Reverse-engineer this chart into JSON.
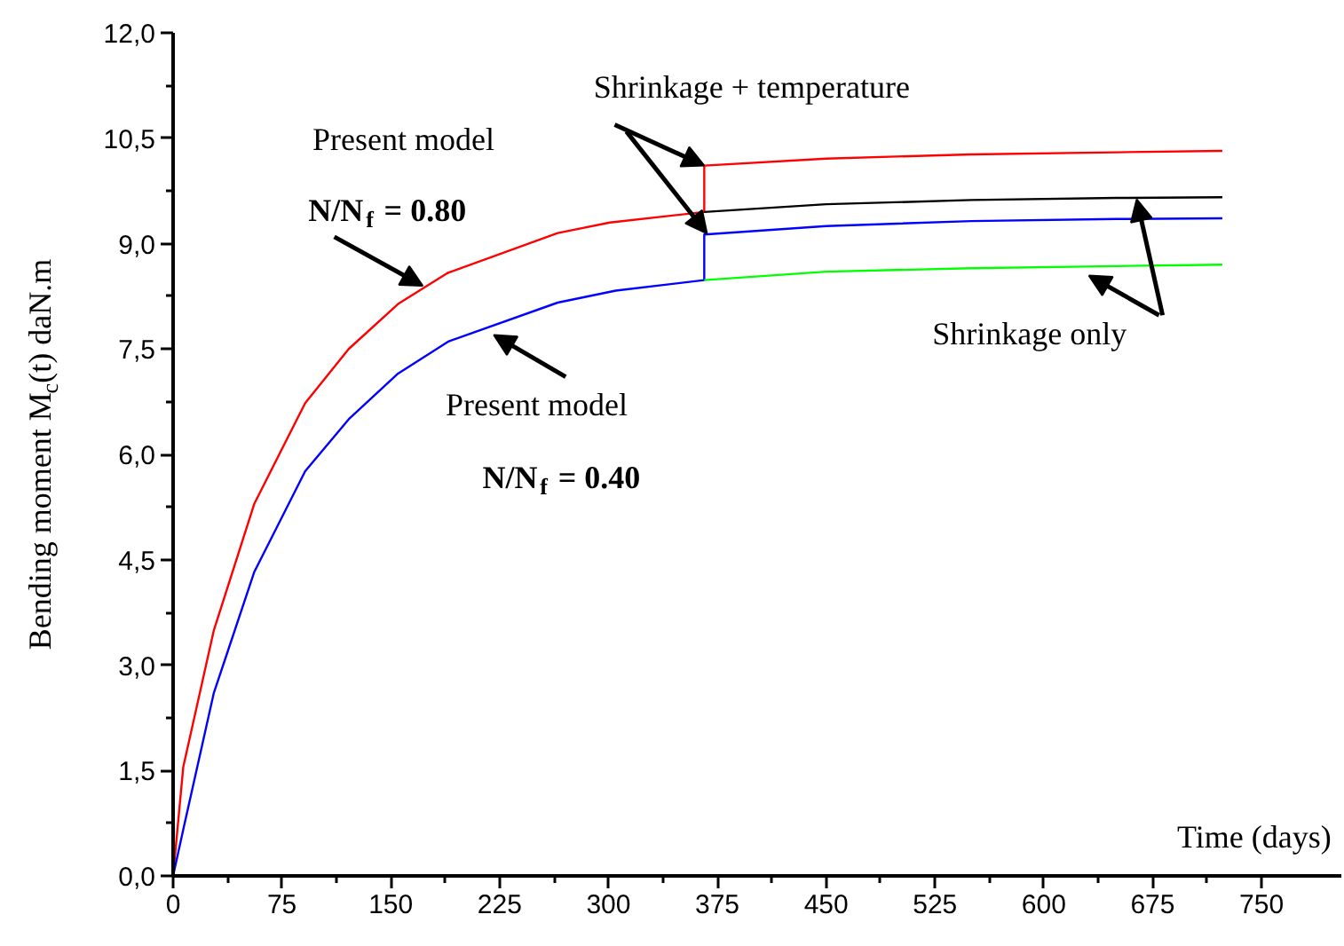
{
  "chart_data": {
    "type": "line",
    "xlabel": "Time (days)",
    "ylabel": "Bending moment M$_{c}$(t) daN.m",
    "xlim": [
      0,
      805
    ],
    "ylim": [
      0,
      12
    ],
    "xticks": [
      0,
      75,
      150,
      225,
      300,
      375,
      450,
      525,
      600,
      675,
      750
    ],
    "yticks": [
      {
        "value": 0,
        "label": "0,0"
      },
      {
        "value": 1.5,
        "label": "1,5"
      },
      {
        "value": 3,
        "label": "3,0"
      },
      {
        "value": 4.5,
        "label": "4,5"
      },
      {
        "value": 6,
        "label": "6,0"
      },
      {
        "value": 7.5,
        "label": "7,5"
      },
      {
        "value": 9,
        "label": "9,0"
      },
      {
        "value": 10.5,
        "label": "10,5"
      },
      {
        "value": 12,
        "label": "12,0"
      }
    ],
    "grid": false,
    "marker": "none",
    "line_style": "solid",
    "series": [
      {
        "color": "#ff0000",
        "x": [
          0,
          7,
          28,
          56,
          91,
          121,
          155,
          189,
          265,
          301,
          366,
          366,
          450,
          550,
          650,
          723
        ],
        "values": [
          0,
          1.55,
          3.49,
          5.3,
          6.73,
          7.5,
          8.14,
          8.58,
          9.15,
          9.3,
          9.45,
          10.11,
          10.21,
          10.27,
          10.3,
          10.32
        ]
      },
      {
        "color": "#000000",
        "x": [
          366,
          450,
          550,
          650,
          723
        ],
        "values": [
          9.45,
          9.56,
          9.62,
          9.65,
          9.66
        ]
      },
      {
        "color": "#0000ff",
        "x": [
          0,
          7,
          28,
          56,
          91,
          121,
          155,
          190,
          265,
          305,
          366,
          366,
          450,
          550,
          650,
          723
        ],
        "values": [
          0,
          0.66,
          2.6,
          4.33,
          5.76,
          6.5,
          7.15,
          7.61,
          8.16,
          8.33,
          8.48,
          9.13,
          9.25,
          9.32,
          9.35,
          9.36
        ]
      },
      {
        "color": "#00ff00",
        "x": [
          366,
          450,
          550,
          650,
          723
        ],
        "values": [
          8.48,
          8.6,
          8.65,
          8.68,
          8.7
        ]
      }
    ],
    "annotations": [
      "Present model",
      {
        "text": "N/N$_{f}$ = 0.80",
        "x": 172,
        "y": 8.4
      },
      {
        "text": "Present model",
        "x": 221,
        "y": 7.7
      },
      "N/N$_{f}$ = 0.40",
      {
        "text": "Shrinkage + temperature",
        "x": 366,
        "y": 10.11
      },
      {
        "text": "Shrinkage only",
        "x": 664,
        "y": 9.63
      }
    ]
  }
}
